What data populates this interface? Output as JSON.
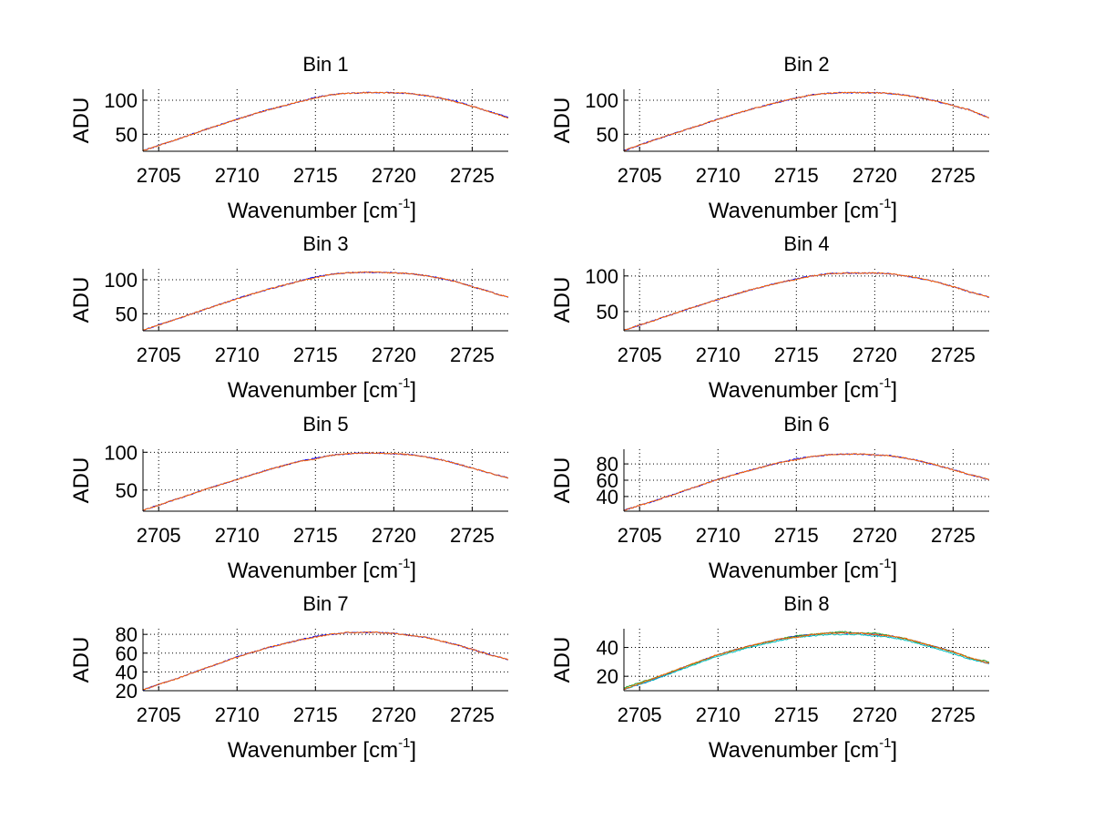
{
  "chart_data": [
    {
      "type": "line",
      "title": "Bin 1",
      "xlabel": "Wavenumber [cm",
      "xlabel_superscript": "-1",
      "xlabel_suffix": "]",
      "ylabel": "ADU",
      "xlim": [
        2704,
        2727.3
      ],
      "ylim": [
        25,
        116
      ],
      "xticks": [
        2705,
        2710,
        2715,
        2720,
        2725
      ],
      "yticks": [
        50,
        100
      ],
      "grid": true,
      "series": [
        {
          "color": "#0000ff",
          "x": [
            2704.0,
            2706.0,
            2708.0,
            2710.0,
            2712.0,
            2714.0,
            2715.0,
            2716.0,
            2717.0,
            2718.0,
            2719.0,
            2720.0,
            2721.0,
            2722.0,
            2723.0,
            2724.0,
            2725.0,
            2726.0,
            2727.3
          ],
          "y": [
            26,
            41,
            57,
            72,
            86,
            98,
            104,
            108,
            110,
            111,
            111,
            111,
            110,
            107,
            103,
            98,
            91,
            84,
            75
          ]
        },
        {
          "color": "#ff6600",
          "x": [
            2704.0,
            2706.0,
            2708.0,
            2710.0,
            2712.0,
            2714.0,
            2715.0,
            2716.0,
            2717.0,
            2718.0,
            2719.0,
            2720.0,
            2721.0,
            2722.0,
            2723.0,
            2724.0,
            2725.0,
            2726.0,
            2727.3
          ],
          "y": [
            26,
            41,
            57,
            72,
            86,
            98,
            103,
            108,
            110,
            111,
            111,
            111,
            110,
            107,
            103,
            97,
            91,
            84,
            74
          ]
        }
      ]
    },
    {
      "type": "line",
      "title": "Bin 2",
      "xlabel": "Wavenumber [cm",
      "xlabel_superscript": "-1",
      "xlabel_suffix": "]",
      "ylabel": "ADU",
      "xlim": [
        2704,
        2727.3
      ],
      "ylim": [
        25,
        116
      ],
      "xticks": [
        2705,
        2710,
        2715,
        2720,
        2725
      ],
      "yticks": [
        50,
        100
      ],
      "grid": true,
      "series": [
        {
          "color": "#0000ff",
          "x": [
            2704.0,
            2706.0,
            2708.0,
            2710.0,
            2712.0,
            2714.0,
            2715.0,
            2716.0,
            2717.0,
            2718.0,
            2719.0,
            2720.0,
            2721.0,
            2722.0,
            2723.0,
            2724.0,
            2725.0,
            2726.0,
            2727.3
          ],
          "y": [
            26,
            42,
            57,
            72,
            86,
            98,
            103,
            108,
            110,
            111,
            111,
            111,
            110,
            107,
            103,
            98,
            92,
            86,
            74
          ]
        },
        {
          "color": "#ff6600",
          "x": [
            2704.0,
            2706.0,
            2708.0,
            2710.0,
            2712.0,
            2714.0,
            2715.0,
            2716.0,
            2717.0,
            2718.0,
            2719.0,
            2720.0,
            2721.0,
            2722.0,
            2723.0,
            2724.0,
            2725.0,
            2726.0,
            2727.3
          ],
          "y": [
            26,
            42,
            57,
            72,
            86,
            98,
            103,
            108,
            110,
            111,
            111,
            111,
            110,
            107,
            103,
            98,
            92,
            86,
            74
          ]
        }
      ]
    },
    {
      "type": "line",
      "title": "Bin 3",
      "xlabel": "Wavenumber [cm",
      "xlabel_superscript": "-1",
      "xlabel_suffix": "]",
      "ylabel": "ADU",
      "xlim": [
        2704,
        2727.3
      ],
      "ylim": [
        25,
        116
      ],
      "xticks": [
        2705,
        2710,
        2715,
        2720,
        2725
      ],
      "yticks": [
        50,
        100
      ],
      "grid": true,
      "series": [
        {
          "color": "#0000ff",
          "x": [
            2704.0,
            2706.0,
            2708.0,
            2710.0,
            2712.0,
            2714.0,
            2715.0,
            2716.0,
            2717.0,
            2718.0,
            2719.0,
            2720.0,
            2721.0,
            2722.0,
            2723.0,
            2724.0,
            2725.0,
            2726.0,
            2727.3
          ],
          "y": [
            26,
            41,
            57,
            72,
            86,
            98,
            104,
            108,
            110,
            111,
            111,
            110,
            109,
            106,
            102,
            97,
            90,
            83,
            74
          ]
        },
        {
          "color": "#ff6600",
          "x": [
            2704.0,
            2706.0,
            2708.0,
            2710.0,
            2712.0,
            2714.0,
            2715.0,
            2716.0,
            2717.0,
            2718.0,
            2719.0,
            2720.0,
            2721.0,
            2722.0,
            2723.0,
            2724.0,
            2725.0,
            2726.0,
            2727.3
          ],
          "y": [
            26,
            41,
            57,
            72,
            86,
            98,
            103,
            108,
            110,
            111,
            111,
            110,
            109,
            106,
            102,
            97,
            90,
            83,
            74
          ]
        }
      ]
    },
    {
      "type": "line",
      "title": "Bin 4",
      "xlabel": "Wavenumber [cm",
      "xlabel_superscript": "-1",
      "xlabel_suffix": "]",
      "ylabel": "ADU",
      "xlim": [
        2704,
        2727.3
      ],
      "ylim": [
        23,
        110
      ],
      "xticks": [
        2705,
        2710,
        2715,
        2720,
        2725
      ],
      "yticks": [
        50,
        100
      ],
      "grid": true,
      "series": [
        {
          "color": "#0000ff",
          "x": [
            2704.0,
            2706.0,
            2708.0,
            2710.0,
            2712.0,
            2714.0,
            2715.0,
            2716.0,
            2717.0,
            2718.0,
            2719.0,
            2720.0,
            2721.0,
            2722.0,
            2723.0,
            2724.0,
            2725.0,
            2726.0,
            2727.3
          ],
          "y": [
            24,
            38,
            53,
            67,
            80,
            91,
            96,
            100,
            103,
            104,
            104,
            104,
            103,
            100,
            96,
            91,
            85,
            78,
            70
          ]
        },
        {
          "color": "#ff6600",
          "x": [
            2704.0,
            2706.0,
            2708.0,
            2710.0,
            2712.0,
            2714.0,
            2715.0,
            2716.0,
            2717.0,
            2718.0,
            2719.0,
            2720.0,
            2721.0,
            2722.0,
            2723.0,
            2724.0,
            2725.0,
            2726.0,
            2727.3
          ],
          "y": [
            24,
            38,
            53,
            67,
            80,
            91,
            95,
            100,
            103,
            104,
            104,
            104,
            103,
            100,
            96,
            91,
            85,
            78,
            70
          ]
        }
      ]
    },
    {
      "type": "line",
      "title": "Bin 5",
      "xlabel": "Wavenumber [cm",
      "xlabel_superscript": "-1",
      "xlabel_suffix": "]",
      "ylabel": "ADU",
      "xlim": [
        2704,
        2727.3
      ],
      "ylim": [
        22,
        104
      ],
      "xticks": [
        2705,
        2710,
        2715,
        2720,
        2725
      ],
      "yticks": [
        50,
        100
      ],
      "grid": true,
      "series": [
        {
          "color": "#0000ff",
          "x": [
            2704.0,
            2706.0,
            2708.0,
            2710.0,
            2712.0,
            2714.0,
            2715.0,
            2716.0,
            2717.0,
            2718.0,
            2719.0,
            2720.0,
            2721.0,
            2722.0,
            2723.0,
            2724.0,
            2725.0,
            2726.0,
            2727.3
          ],
          "y": [
            23,
            37,
            51,
            64,
            77,
            88,
            92,
            96,
            98,
            99,
            99,
            98,
            97,
            94,
            90,
            85,
            79,
            73,
            66
          ]
        },
        {
          "color": "#ff6600",
          "x": [
            2704.0,
            2706.0,
            2708.0,
            2710.0,
            2712.0,
            2714.0,
            2715.0,
            2716.0,
            2717.0,
            2718.0,
            2719.0,
            2720.0,
            2721.0,
            2722.0,
            2723.0,
            2724.0,
            2725.0,
            2726.0,
            2727.3
          ],
          "y": [
            23,
            37,
            51,
            64,
            77,
            88,
            91,
            96,
            98,
            99,
            99,
            98,
            97,
            94,
            90,
            85,
            79,
            73,
            66
          ]
        }
      ]
    },
    {
      "type": "line",
      "title": "Bin 6",
      "xlabel": "Wavenumber [cm",
      "xlabel_superscript": "-1",
      "xlabel_suffix": "]",
      "ylabel": "ADU",
      "xlim": [
        2704,
        2727.3
      ],
      "ylim": [
        22,
        98
      ],
      "xticks": [
        2705,
        2710,
        2715,
        2720,
        2725
      ],
      "yticks": [
        40,
        60,
        80
      ],
      "grid": true,
      "series": [
        {
          "color": "#0000ff",
          "x": [
            2704.0,
            2706.0,
            2708.0,
            2710.0,
            2712.0,
            2714.0,
            2715.0,
            2716.0,
            2717.0,
            2718.0,
            2719.0,
            2720.0,
            2721.0,
            2722.0,
            2723.0,
            2724.0,
            2725.0,
            2726.0,
            2727.3
          ],
          "y": [
            23,
            35,
            48,
            61,
            72,
            82,
            86,
            89,
            91,
            92,
            92,
            91,
            90,
            87,
            83,
            78,
            73,
            67,
            61
          ]
        },
        {
          "color": "#ff6600",
          "x": [
            2704.0,
            2706.0,
            2708.0,
            2710.0,
            2712.0,
            2714.0,
            2715.0,
            2716.0,
            2717.0,
            2718.0,
            2719.0,
            2720.0,
            2721.0,
            2722.0,
            2723.0,
            2724.0,
            2725.0,
            2726.0,
            2727.3
          ],
          "y": [
            23,
            35,
            48,
            61,
            72,
            82,
            85,
            89,
            91,
            92,
            92,
            91,
            90,
            87,
            83,
            78,
            73,
            67,
            61
          ]
        }
      ]
    },
    {
      "type": "line",
      "title": "Bin 7",
      "xlabel": "Wavenumber [cm",
      "xlabel_superscript": "-1",
      "xlabel_suffix": "]",
      "ylabel": "ADU",
      "xlim": [
        2704,
        2727.3
      ],
      "ylim": [
        20,
        86
      ],
      "xticks": [
        2705,
        2710,
        2715,
        2720,
        2725
      ],
      "yticks": [
        20,
        40,
        60,
        80
      ],
      "grid": true,
      "series": [
        {
          "color": "#0000ff",
          "x": [
            2704.0,
            2706.0,
            2708.0,
            2710.0,
            2712.0,
            2714.0,
            2715.0,
            2716.0,
            2717.0,
            2718.0,
            2719.0,
            2720.0,
            2721.0,
            2722.0,
            2723.0,
            2724.0,
            2725.0,
            2726.0,
            2727.3
          ],
          "y": [
            21,
            32,
            44,
            56,
            66,
            74,
            78,
            80,
            82,
            82,
            82,
            81,
            79,
            77,
            73,
            69,
            64,
            59,
            53
          ]
        },
        {
          "color": "#ff6600",
          "x": [
            2704.0,
            2706.0,
            2708.0,
            2710.0,
            2712.0,
            2714.0,
            2715.0,
            2716.0,
            2717.0,
            2718.0,
            2719.0,
            2720.0,
            2721.0,
            2722.0,
            2723.0,
            2724.0,
            2725.0,
            2726.0,
            2727.3
          ],
          "y": [
            21,
            32,
            44,
            56,
            66,
            74,
            77,
            80,
            82,
            82,
            82,
            81,
            79,
            77,
            73,
            69,
            64,
            59,
            53
          ]
        }
      ]
    },
    {
      "type": "line",
      "title": "Bin 8",
      "xlabel": "Wavenumber [cm",
      "xlabel_superscript": "-1",
      "xlabel_suffix": "]",
      "ylabel": "ADU",
      "xlim": [
        2704,
        2727.3
      ],
      "ylim": [
        10,
        53
      ],
      "xticks": [
        2705,
        2710,
        2715,
        2720,
        2725
      ],
      "yticks": [
        20,
        40
      ],
      "grid": true,
      "series": [
        {
          "color": "#0000ff",
          "x": [
            2704.0,
            2706.0,
            2708.0,
            2710.0,
            2712.0,
            2714.0,
            2715.0,
            2716.0,
            2717.0,
            2718.0,
            2719.0,
            2720.0,
            2721.0,
            2722.0,
            2723.0,
            2724.0,
            2725.0,
            2726.0,
            2727.3
          ],
          "y": [
            11,
            18,
            27,
            35,
            41,
            46,
            48,
            49,
            50,
            50,
            50,
            49,
            48,
            46,
            43,
            40,
            37,
            33,
            29
          ]
        },
        {
          "color": "#00bfbf",
          "x": [
            2704.0,
            2706.0,
            2708.0,
            2710.0,
            2712.0,
            2714.0,
            2715.0,
            2716.0,
            2717.0,
            2718.0,
            2719.0,
            2720.0,
            2721.0,
            2722.0,
            2723.0,
            2724.0,
            2725.0,
            2726.0,
            2727.3
          ],
          "y": [
            11,
            18,
            26,
            34,
            40,
            45,
            47,
            48,
            49,
            49,
            49,
            48,
            47,
            45,
            42,
            39,
            36,
            32,
            29
          ]
        },
        {
          "color": "#2ca02c",
          "x": [
            2704.0,
            2706.0,
            2708.0,
            2710.0,
            2712.0,
            2714.0,
            2715.0,
            2716.0,
            2717.0,
            2718.0,
            2719.0,
            2720.0,
            2721.0,
            2722.0,
            2723.0,
            2724.0,
            2725.0,
            2726.0,
            2727.3
          ],
          "y": [
            12,
            19,
            27,
            35,
            41,
            46,
            48,
            49,
            50,
            51,
            50,
            50,
            48,
            46,
            43,
            40,
            37,
            33,
            30
          ]
        },
        {
          "color": "#ff6600",
          "x": [
            2704.0,
            2706.0,
            2708.0,
            2710.0,
            2712.0,
            2714.0,
            2715.0,
            2716.0,
            2717.0,
            2718.0,
            2719.0,
            2720.0,
            2721.0,
            2722.0,
            2723.0,
            2724.0,
            2725.0,
            2726.0,
            2727.3
          ],
          "y": [
            11,
            19,
            27,
            35,
            41,
            46,
            47,
            49,
            50,
            50,
            50,
            49,
            48,
            46,
            43,
            40,
            37,
            33,
            29
          ]
        }
      ]
    }
  ]
}
